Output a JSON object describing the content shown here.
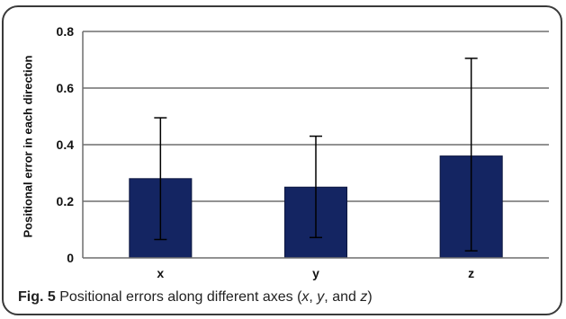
{
  "chart_data": {
    "type": "bar",
    "title": "",
    "xlabel": "",
    "ylabel": "Positional error in each direction",
    "categories": [
      "x",
      "y",
      "z"
    ],
    "values": [
      0.28,
      0.25,
      0.36
    ],
    "error_bars": {
      "lower": [
        0.065,
        0.072,
        0.025
      ],
      "upper": [
        0.495,
        0.43,
        0.705
      ]
    },
    "ylim": [
      0,
      0.8
    ],
    "yticks": [
      "0",
      "0.2",
      "0.4",
      "0.6",
      "0.8"
    ],
    "grid": true,
    "bar_color": "#142562"
  },
  "caption": {
    "label": "Fig. 5",
    "text_before": " Positional errors along different axes (",
    "x": "x",
    "sep1": ", ",
    "y": "y",
    "sep2": ", and ",
    "z": "z",
    "text_after": ")"
  }
}
